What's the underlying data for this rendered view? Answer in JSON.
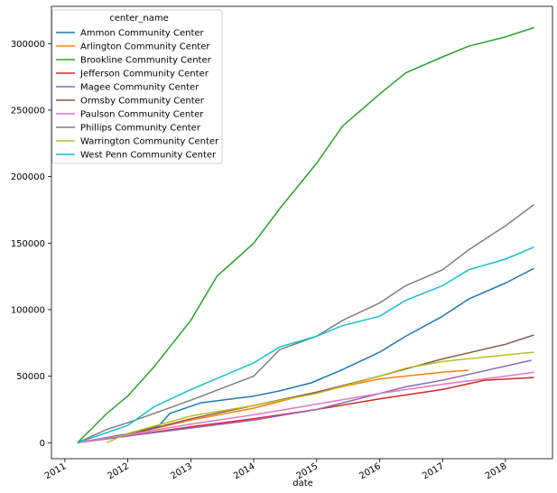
{
  "chart_data": {
    "type": "line",
    "xlabel": "date",
    "ylabel": "",
    "x_ticks": [
      "2011",
      "2012",
      "2013",
      "2014",
      "2015",
      "2016",
      "2017",
      "2018"
    ],
    "y_ticks": [
      "0",
      "50000",
      "100000",
      "150000",
      "200000",
      "250000",
      "300000"
    ],
    "xlim": [
      "2010-10-15",
      "2018-10-01"
    ],
    "ylim": [
      -12000,
      328000
    ],
    "grid": false,
    "legend": {
      "title": "center_name",
      "placement": "top-left"
    },
    "series": [
      {
        "name": "Ammon Community Center",
        "color": "#1f77b4",
        "points": [
          [
            "2011-03-15",
            0
          ],
          [
            "2012-03-01",
            8000
          ],
          [
            "2012-07-01",
            13000
          ],
          [
            "2012-09-01",
            22000
          ],
          [
            "2013-03-01",
            30000
          ],
          [
            "2014-01-01",
            35000
          ],
          [
            "2014-06-01",
            39000
          ],
          [
            "2014-12-01",
            45000
          ],
          [
            "2015-06-01",
            55000
          ],
          [
            "2016-01-01",
            68000
          ],
          [
            "2016-06-01",
            80000
          ],
          [
            "2017-01-01",
            95000
          ],
          [
            "2017-06-01",
            108000
          ],
          [
            "2018-01-01",
            120000
          ],
          [
            "2018-06-15",
            131000
          ]
        ]
      },
      {
        "name": "Arlington Community Center",
        "color": "#ff7f0e",
        "points": [
          [
            "2011-03-15",
            0
          ],
          [
            "2012-01-01",
            6000
          ],
          [
            "2013-01-01",
            17000
          ],
          [
            "2014-01-01",
            26000
          ],
          [
            "2015-01-01",
            38000
          ],
          [
            "2016-01-01",
            48000
          ],
          [
            "2017-01-01",
            53000
          ],
          [
            "2017-06-01",
            54500
          ]
        ]
      },
      {
        "name": "Brookline Community Center",
        "color": "#2ca02c",
        "points": [
          [
            "2011-03-15",
            0
          ],
          [
            "2011-06-01",
            10000
          ],
          [
            "2011-09-01",
            22000
          ],
          [
            "2012-01-01",
            35000
          ],
          [
            "2012-06-01",
            57000
          ],
          [
            "2013-01-01",
            92000
          ],
          [
            "2013-06-01",
            125000
          ],
          [
            "2014-01-01",
            150000
          ],
          [
            "2014-06-01",
            176000
          ],
          [
            "2015-01-01",
            210000
          ],
          [
            "2015-06-01",
            238000
          ],
          [
            "2016-01-01",
            262000
          ],
          [
            "2016-06-01",
            278000
          ],
          [
            "2017-01-01",
            290000
          ],
          [
            "2017-06-01",
            298000
          ],
          [
            "2018-01-01",
            305000
          ],
          [
            "2018-06-15",
            312000
          ]
        ]
      },
      {
        "name": "Jefferson Community Center",
        "color": "#d62728",
        "points": [
          [
            "2011-03-15",
            0
          ],
          [
            "2012-01-01",
            5000
          ],
          [
            "2013-01-01",
            12000
          ],
          [
            "2014-01-01",
            18000
          ],
          [
            "2015-01-01",
            25000
          ],
          [
            "2016-01-01",
            33000
          ],
          [
            "2017-01-01",
            40000
          ],
          [
            "2017-09-01",
            47000
          ],
          [
            "2018-06-15",
            49000
          ]
        ]
      },
      {
        "name": "Magee Community Center",
        "color": "#9467bd",
        "points": [
          [
            "2011-03-15",
            0
          ],
          [
            "2012-01-01",
            5000
          ],
          [
            "2013-01-01",
            11000
          ],
          [
            "2014-01-01",
            17000
          ],
          [
            "2015-01-01",
            25000
          ],
          [
            "2016-01-01",
            37000
          ],
          [
            "2016-06-01",
            42000
          ],
          [
            "2017-01-01",
            47000
          ],
          [
            "2018-06-01",
            62000
          ]
        ]
      },
      {
        "name": "Ormsby Community Center",
        "color": "#8c564b",
        "points": [
          [
            "2011-03-15",
            0
          ],
          [
            "2012-01-01",
            6000
          ],
          [
            "2013-01-01",
            18000
          ],
          [
            "2014-01-01",
            28000
          ],
          [
            "2015-01-01",
            38000
          ],
          [
            "2016-01-01",
            50000
          ],
          [
            "2017-01-01",
            63000
          ],
          [
            "2018-01-01",
            74000
          ],
          [
            "2018-06-15",
            81000
          ]
        ]
      },
      {
        "name": "Paulson Community Center",
        "color": "#e377c2",
        "points": [
          [
            "2011-03-15",
            0
          ],
          [
            "2012-01-01",
            6000
          ],
          [
            "2013-01-01",
            14000
          ],
          [
            "2014-01-01",
            21000
          ],
          [
            "2015-01-01",
            29000
          ],
          [
            "2016-01-01",
            37000
          ],
          [
            "2017-01-01",
            44000
          ],
          [
            "2018-01-01",
            50000
          ],
          [
            "2018-06-15",
            53000
          ]
        ]
      },
      {
        "name": "Phillips Community Center",
        "color": "#7f7f7f",
        "points": [
          [
            "2011-03-15",
            0
          ],
          [
            "2011-09-01",
            10000
          ],
          [
            "2012-01-01",
            15000
          ],
          [
            "2012-06-01",
            22000
          ],
          [
            "2013-01-01",
            32000
          ],
          [
            "2014-01-01",
            50000
          ],
          [
            "2014-06-01",
            70000
          ],
          [
            "2015-01-01",
            80000
          ],
          [
            "2015-06-01",
            92000
          ],
          [
            "2016-01-01",
            105000
          ],
          [
            "2016-06-01",
            118000
          ],
          [
            "2017-01-01",
            130000
          ],
          [
            "2017-06-01",
            145000
          ],
          [
            "2018-01-01",
            163000
          ],
          [
            "2018-06-15",
            179000
          ]
        ]
      },
      {
        "name": "Warrington Community Center",
        "color": "#bcbd22",
        "points": [
          [
            "2011-09-01",
            0
          ],
          [
            "2012-01-01",
            7000
          ],
          [
            "2013-01-01",
            20000
          ],
          [
            "2014-01-01",
            28000
          ],
          [
            "2015-01-01",
            37000
          ],
          [
            "2016-01-01",
            50000
          ],
          [
            "2016-06-01",
            56000
          ],
          [
            "2017-01-01",
            61000
          ],
          [
            "2018-01-01",
            66000
          ],
          [
            "2018-06-15",
            68000
          ]
        ]
      },
      {
        "name": "West Penn Community Center",
        "color": "#17becf",
        "points": [
          [
            "2011-03-15",
            0
          ],
          [
            "2012-01-01",
            13000
          ],
          [
            "2012-06-01",
            27000
          ],
          [
            "2013-01-01",
            40000
          ],
          [
            "2014-01-01",
            60000
          ],
          [
            "2014-06-01",
            72000
          ],
          [
            "2015-01-01",
            80000
          ],
          [
            "2015-06-01",
            88000
          ],
          [
            "2016-01-01",
            95000
          ],
          [
            "2016-06-01",
            107000
          ],
          [
            "2017-01-01",
            118000
          ],
          [
            "2017-06-01",
            130000
          ],
          [
            "2018-01-01",
            138000
          ],
          [
            "2018-06-15",
            147000
          ]
        ]
      }
    ]
  }
}
